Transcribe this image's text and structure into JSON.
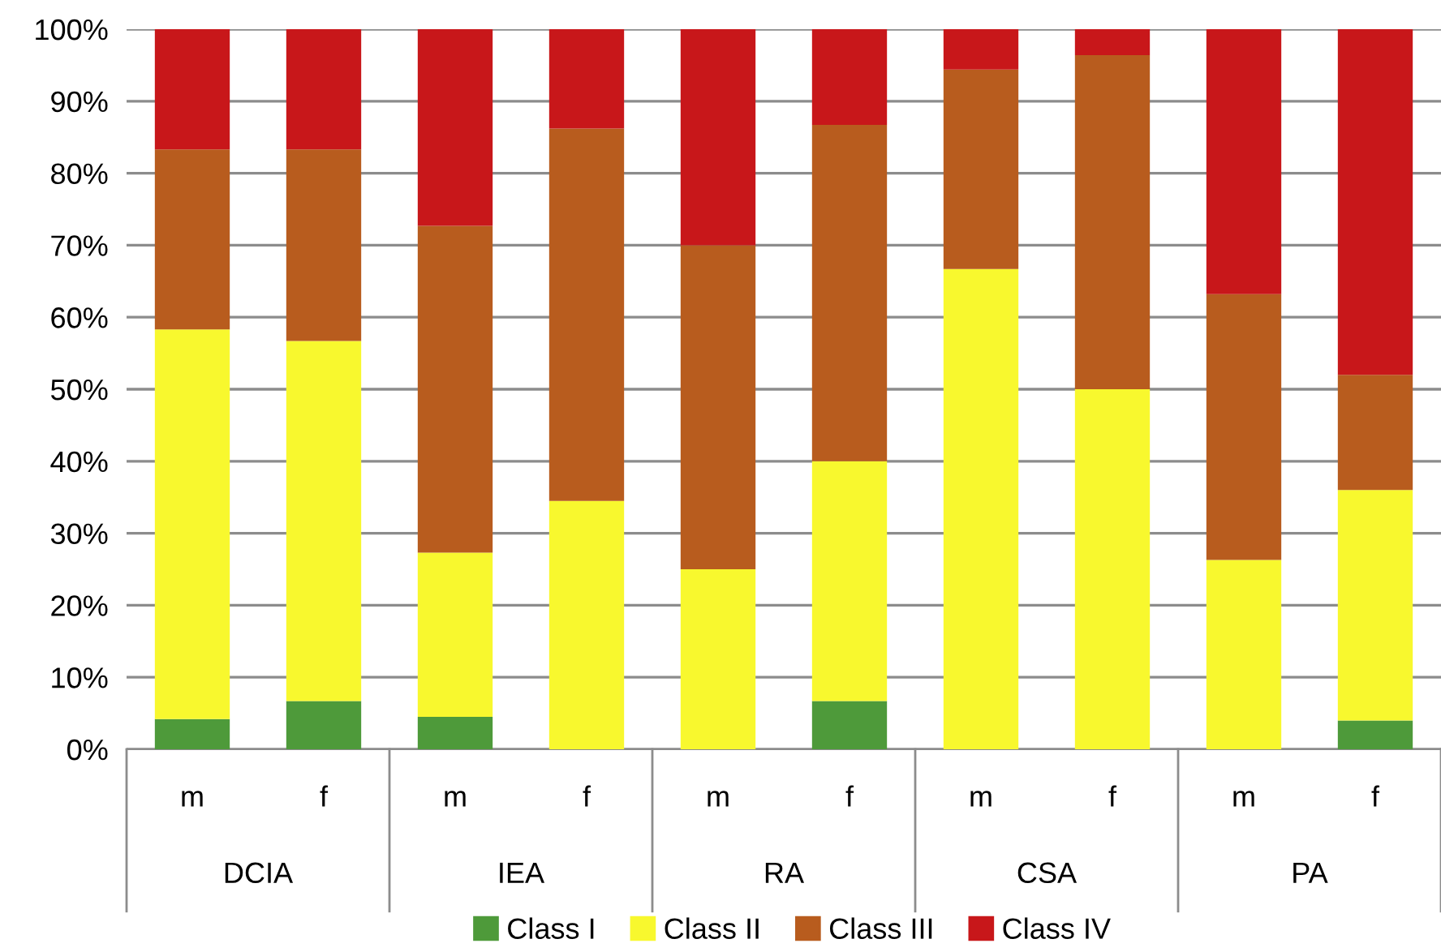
{
  "chart_data": {
    "type": "bar",
    "stacked": true,
    "categories": [
      "m",
      "f",
      "m",
      "f",
      "m",
      "f",
      "m",
      "f",
      "m",
      "f"
    ],
    "series": [
      {
        "name": "Class I",
        "color": "#4e9a3a",
        "values": [
          4.2,
          6.7,
          4.5,
          0,
          0,
          6.7,
          0,
          0,
          0,
          4
        ]
      },
      {
        "name": "Class II",
        "color": "#f8f82e",
        "values": [
          54.1,
          50,
          22.8,
          34.5,
          25,
          33.3,
          66.7,
          50,
          26.3,
          32
        ]
      },
      {
        "name": "Class III",
        "color": "#b85c1e",
        "values": [
          25,
          26.6,
          45.4,
          51.7,
          45,
          46.7,
          27.7,
          46.4,
          36.9,
          16
        ]
      },
      {
        "name": "Class IV",
        "color": "#c8171a",
        "values": [
          16.7,
          16.7,
          27.3,
          13.8,
          30,
          13.3,
          5.6,
          3.6,
          36.8,
          48
        ]
      }
    ],
    "annotations": [
      "DCIA",
      "IEA",
      "RA",
      "CSA",
      "PA"
    ],
    "ylim": [
      0,
      100
    ],
    "yticks": [
      {
        "value": 0,
        "label": "0%"
      },
      {
        "value": 10,
        "label": "10%"
      },
      {
        "value": 20,
        "label": "20%"
      },
      {
        "value": 30,
        "label": "30%"
      },
      {
        "value": 40,
        "label": "40%"
      },
      {
        "value": 50,
        "label": "50%"
      },
      {
        "value": 60,
        "label": "60%"
      },
      {
        "value": 70,
        "label": "70%"
      },
      {
        "value": 80,
        "label": "80%"
      },
      {
        "value": 90,
        "label": "90%"
      },
      {
        "value": 100,
        "label": "100%"
      }
    ],
    "grid": "y",
    "legend": "bottom"
  }
}
